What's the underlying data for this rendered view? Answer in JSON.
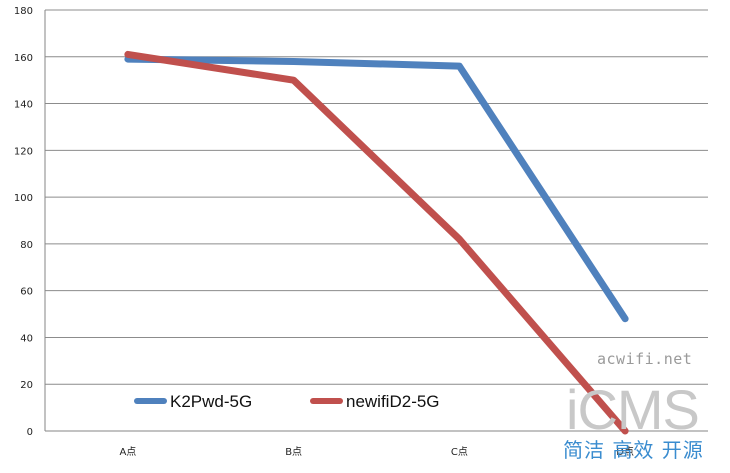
{
  "chart_data": {
    "type": "line",
    "categories": [
      "A点",
      "B点",
      "C点",
      "D点"
    ],
    "yticks": [
      0,
      20,
      40,
      60,
      80,
      100,
      120,
      140,
      160,
      180
    ],
    "ylim": [
      0,
      180
    ],
    "grid": true,
    "legend_position": "bottom-left",
    "series": [
      {
        "name": "K2Pwd-5G",
        "values": [
          159,
          158,
          156,
          48
        ],
        "color": "#4F81BD"
      },
      {
        "name": "newifiD2-5G",
        "values": [
          161,
          150,
          82,
          0
        ],
        "color": "#C0504D"
      }
    ]
  },
  "watermark": {
    "url": "acwifi.net",
    "logo": "iCMS",
    "tagline": "简洁 高效 开源"
  }
}
